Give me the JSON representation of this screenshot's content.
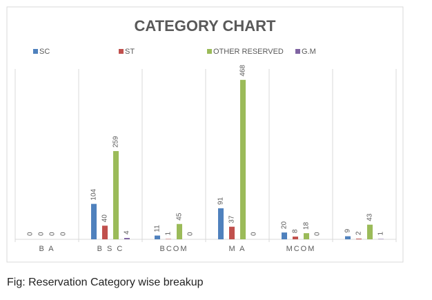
{
  "chart_data": {
    "type": "bar",
    "title": "CATEGORY  CHART",
    "categories": [
      "B A",
      "B S C",
      "BCOM",
      "M A",
      "MCOM",
      null
    ],
    "series": [
      {
        "name": "SC",
        "color": "#4f81bd",
        "values": [
          0,
          104,
          11,
          91,
          20,
          9
        ]
      },
      {
        "name": "ST",
        "color": "#c0504d",
        "values": [
          0,
          40,
          1,
          37,
          8,
          2
        ]
      },
      {
        "name": "OTHER RESERVED",
        "color": "#9bbb59",
        "values": [
          0,
          259,
          45,
          468,
          18,
          43
        ]
      },
      {
        "name": "G.M",
        "color": "#8064a2",
        "values": [
          0,
          4,
          0,
          0,
          0,
          1
        ]
      }
    ],
    "ylim": [
      0,
      500
    ],
    "legend": "top"
  },
  "caption": "Fig: Reservation Category wise breakup"
}
